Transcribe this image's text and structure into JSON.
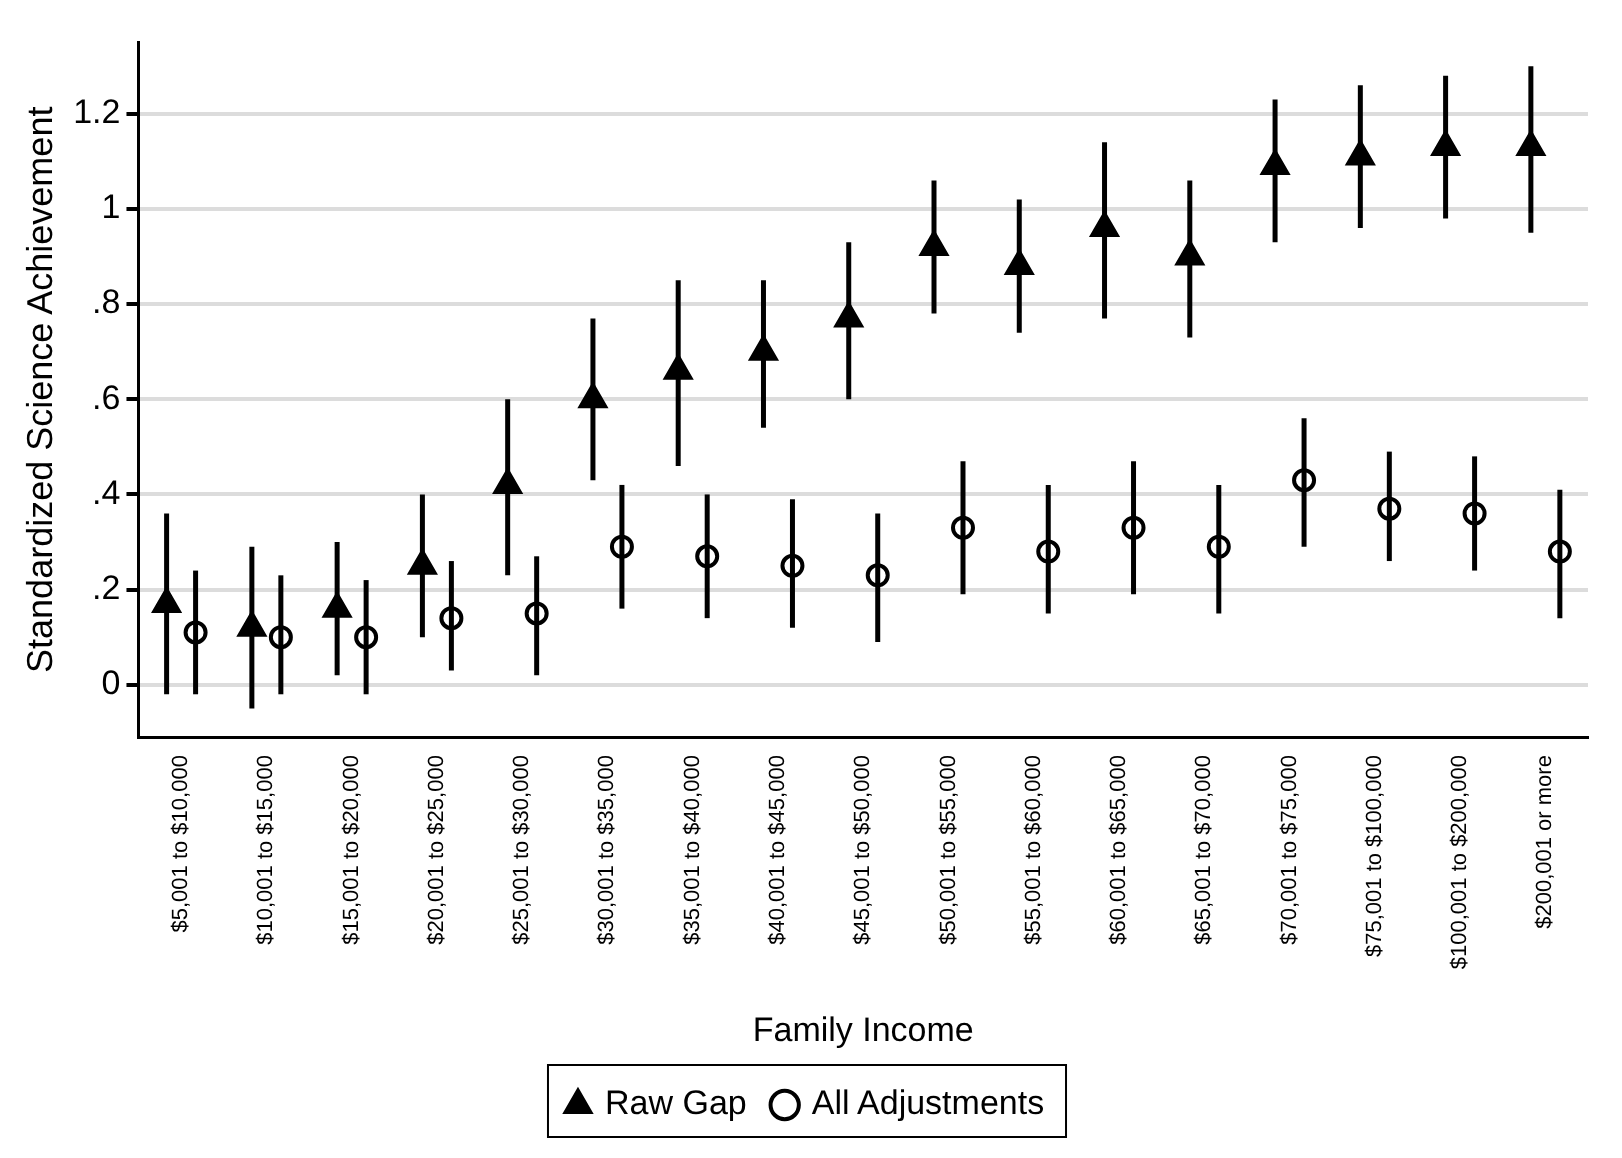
{
  "chart_data": {
    "type": "scatter",
    "xlabel": "Family Income",
    "ylabel": "Standardized Science Achievement",
    "categories": [
      "$5,001 to $10,000",
      "$10,001 to $15,000",
      "$15,001 to $20,000",
      "$20,001 to $25,000",
      "$25,001 to $30,000",
      "$30,001 to $35,000",
      "$35,001 to $40,000",
      "$40,001 to $45,000",
      "$45,001 to $50,000",
      "$50,001 to $55,000",
      "$55,001 to $60,000",
      "$60,001 to $65,000",
      "$65,001 to $70,000",
      "$70,001 to $75,000",
      "$75,001 to $100,000",
      "$100,001 to $200,000",
      "$200,001 or more"
    ],
    "series": [
      {
        "name": "Raw Gap",
        "color": "#000000",
        "marker": "triangle",
        "values": [
          0.17,
          0.12,
          0.16,
          0.25,
          0.42,
          0.6,
          0.66,
          0.7,
          0.77,
          0.92,
          0.88,
          0.96,
          0.9,
          1.09,
          1.11,
          1.13,
          1.13
        ],
        "errors": [
          [
            -0.02,
            0.36
          ],
          [
            -0.05,
            0.29
          ],
          [
            0.02,
            0.3
          ],
          [
            0.1,
            0.4
          ],
          [
            0.23,
            0.6
          ],
          [
            0.43,
            0.77
          ],
          [
            0.46,
            0.85
          ],
          [
            0.54,
            0.85
          ],
          [
            0.6,
            0.93
          ],
          [
            0.78,
            1.06
          ],
          [
            0.74,
            1.02
          ],
          [
            0.77,
            1.14
          ],
          [
            0.73,
            1.06
          ],
          [
            0.93,
            1.23
          ],
          [
            0.96,
            1.26
          ],
          [
            0.98,
            1.28
          ],
          [
            0.95,
            1.3
          ]
        ]
      },
      {
        "name": "All Adjustments",
        "color": "#000000",
        "marker": "circle",
        "values": [
          0.11,
          0.1,
          0.1,
          0.14,
          0.15,
          0.29,
          0.27,
          0.25,
          0.23,
          0.33,
          0.28,
          0.33,
          0.29,
          0.43,
          0.37,
          0.36,
          0.28
        ],
        "errors": [
          [
            -0.02,
            0.24
          ],
          [
            -0.02,
            0.23
          ],
          [
            -0.02,
            0.22
          ],
          [
            0.03,
            0.26
          ],
          [
            0.02,
            0.27
          ],
          [
            0.16,
            0.42
          ],
          [
            0.14,
            0.4
          ],
          [
            0.12,
            0.39
          ],
          [
            0.09,
            0.36
          ],
          [
            0.19,
            0.47
          ],
          [
            0.15,
            0.42
          ],
          [
            0.19,
            0.47
          ],
          [
            0.15,
            0.42
          ],
          [
            0.29,
            0.56
          ],
          [
            0.26,
            0.49
          ],
          [
            0.24,
            0.48
          ],
          [
            0.14,
            0.41
          ]
        ]
      }
    ],
    "ylim": [
      -0.11,
      1.35
    ],
    "yticks": [
      0,
      {
        "value": 0.2,
        "label": ".2"
      },
      {
        "value": 0.4,
        "label": ".4"
      },
      {
        "value": 0.6,
        "label": ".6"
      },
      {
        "value": 0.8,
        "label": ".8"
      },
      1,
      1.2
    ],
    "grid": "y",
    "legend": "bottom"
  }
}
